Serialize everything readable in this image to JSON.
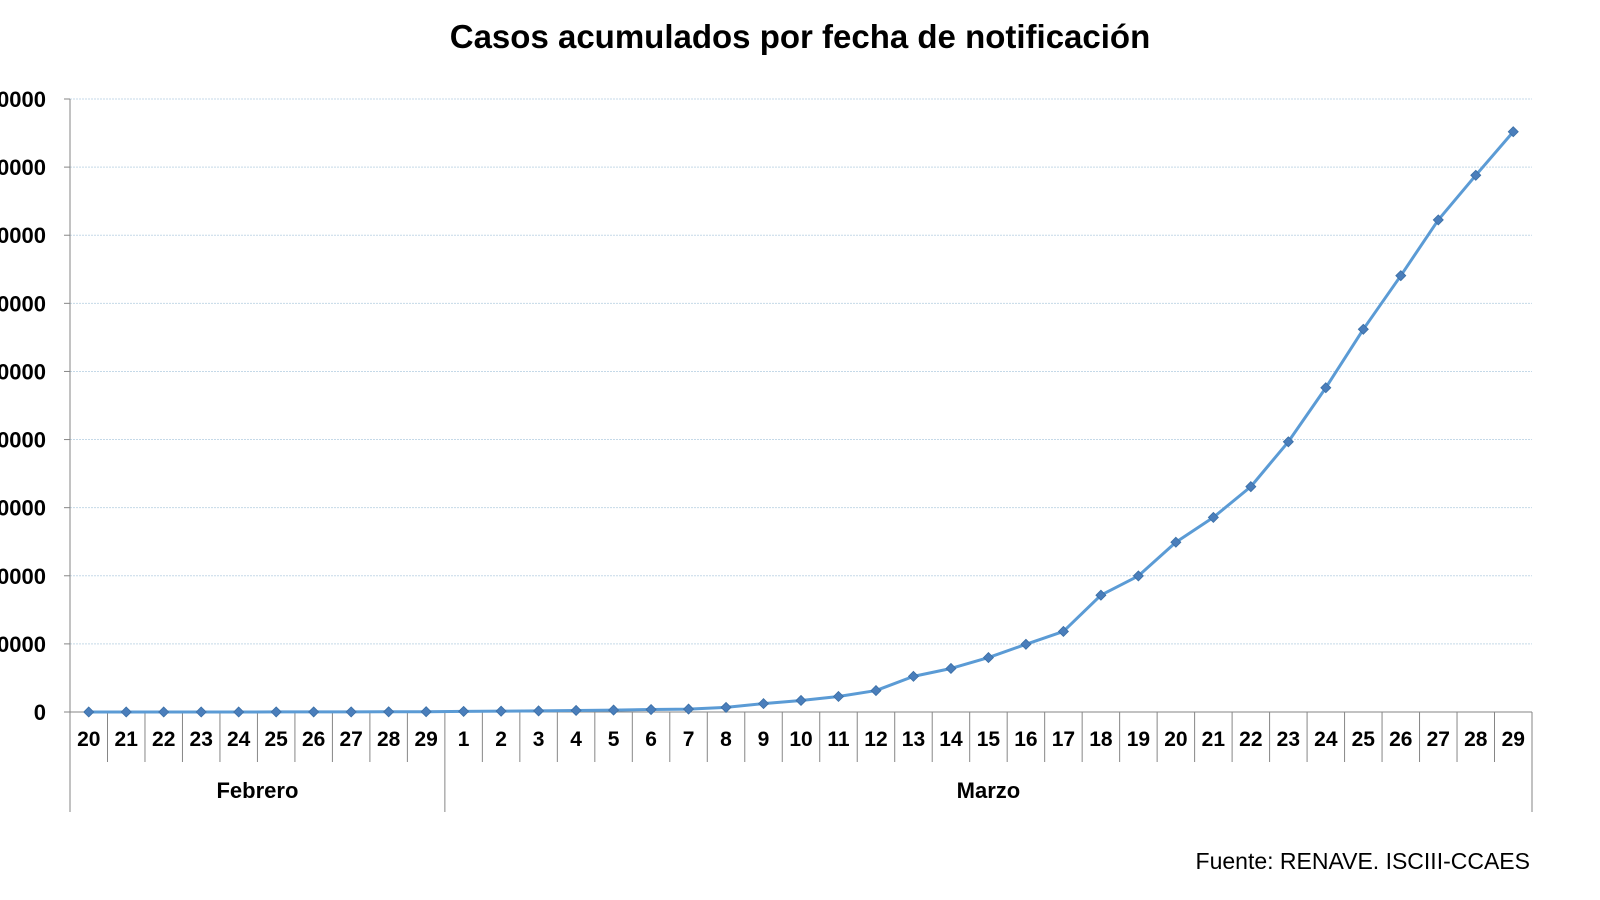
{
  "chart_data": {
    "type": "line",
    "title": "Casos acumulados por fecha de notificación",
    "source": "Fuente: RENAVE. ISCIII-CCAES",
    "xlabel": "",
    "ylabel": "",
    "ylim": [
      0,
      90000
    ],
    "y_ticks": [
      "0",
      "0000",
      "0000",
      "0000",
      "0000",
      "0000",
      "0000",
      "0000",
      "0000",
      "0000"
    ],
    "grid": true,
    "line_color": "#5b9bd5",
    "marker_color": "#4a7ebb",
    "months": [
      {
        "name": "Febrero",
        "start": 0,
        "count": 10
      },
      {
        "name": "Marzo",
        "start": 10,
        "count": 29
      }
    ],
    "categories": [
      "20",
      "21",
      "22",
      "23",
      "24",
      "25",
      "26",
      "27",
      "28",
      "29",
      "1",
      "2",
      "3",
      "4",
      "5",
      "6",
      "7",
      "8",
      "9",
      "10",
      "11",
      "12",
      "13",
      "14",
      "15",
      "16",
      "17",
      "18",
      "19",
      "20",
      "21",
      "22",
      "23",
      "24",
      "25",
      "26",
      "27",
      "28",
      "29"
    ],
    "series": [
      {
        "values": [
          2,
          2,
          2,
          2,
          2,
          12,
          13,
          15,
          32,
          45,
          84,
          120,
          165,
          228,
          282,
          365,
          430,
          674,
          1231,
          1695,
          2277,
          3146,
          5232,
          6391,
          7988,
          9942,
          11826,
          17147,
          19980,
          24926,
          28572,
          33089,
          39673,
          47610,
          56188,
          64059,
          72248,
          78797,
          85195
        ]
      }
    ]
  }
}
